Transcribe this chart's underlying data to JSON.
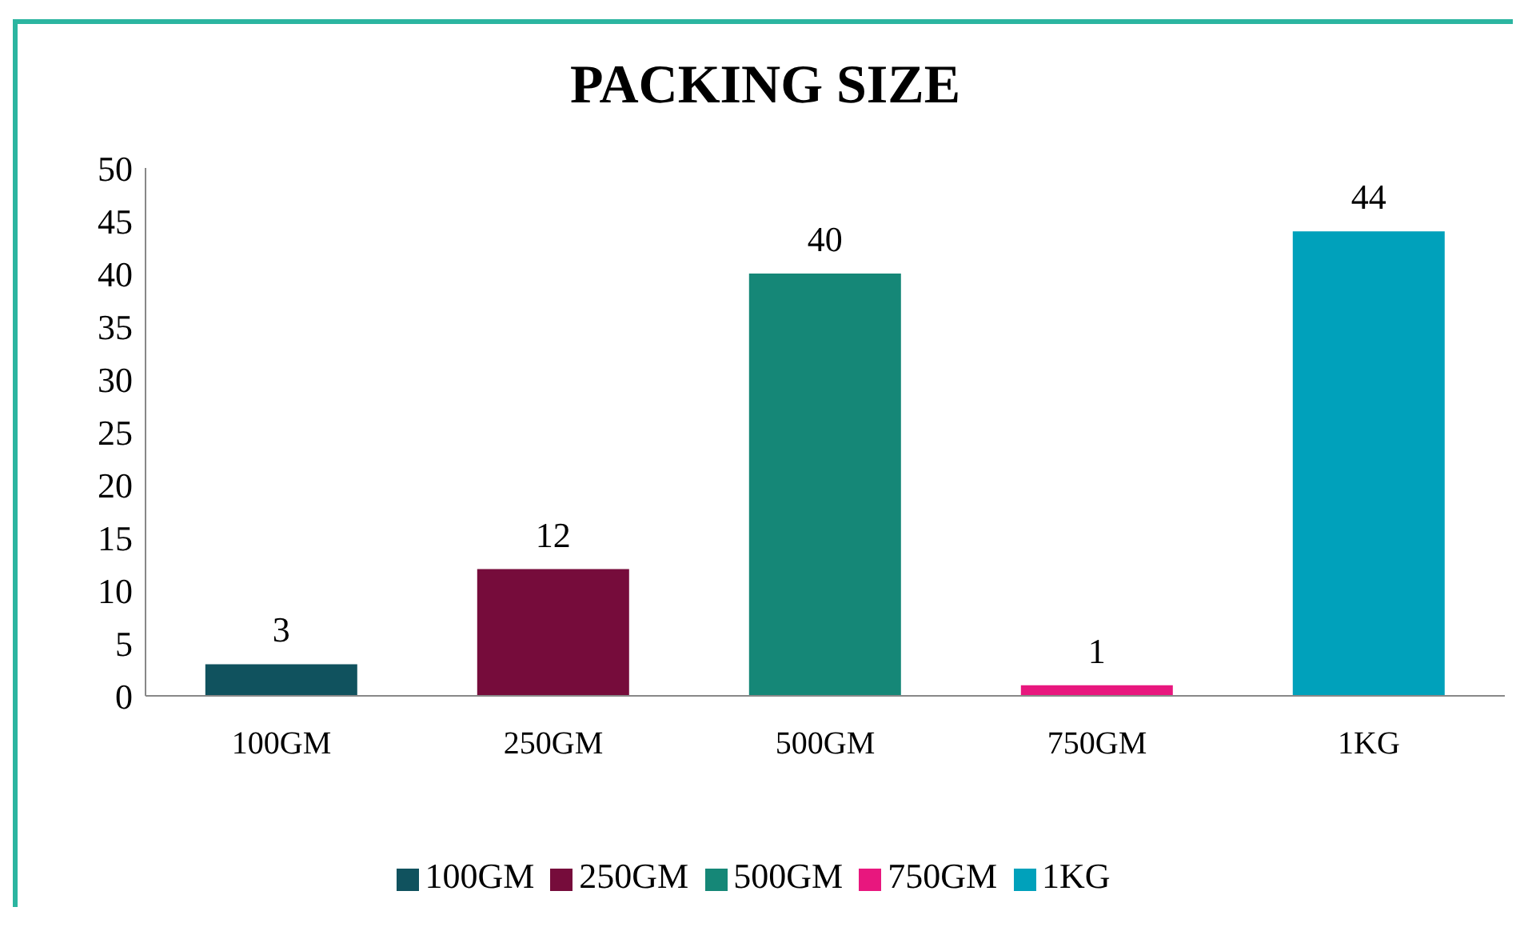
{
  "chart_data": {
    "type": "bar",
    "title": "PACKING SIZE",
    "categories": [
      "100GM",
      "250GM",
      "500GM",
      "750GM",
      "1KG"
    ],
    "stacked": true,
    "series": [
      {
        "name": "100GM",
        "color": "#10525e",
        "values": [
          3,
          null,
          null,
          null,
          null
        ]
      },
      {
        "name": "250GM",
        "color": "#760c3b",
        "values": [
          null,
          12,
          null,
          null,
          null
        ]
      },
      {
        "name": "500GM",
        "color": "#158777",
        "values": [
          null,
          null,
          40,
          null,
          null
        ]
      },
      {
        "name": "750GM",
        "color": "#e8177e",
        "values": [
          null,
          null,
          null,
          1,
          null
        ]
      },
      {
        "name": "1KG",
        "color": "#00a1bb",
        "values": [
          null,
          null,
          null,
          null,
          44
        ]
      }
    ],
    "ylim": [
      0,
      50
    ],
    "yticks": [
      0,
      5,
      10,
      15,
      20,
      25,
      30,
      35,
      40,
      45,
      50
    ],
    "data_labels": true,
    "legend": "bottom"
  }
}
